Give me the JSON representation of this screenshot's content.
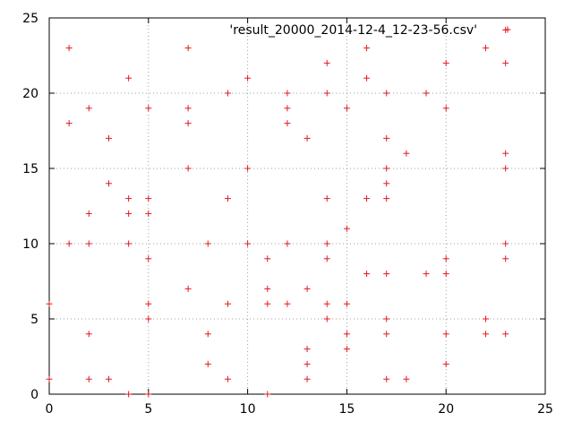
{
  "chart_data": {
    "type": "scatter",
    "title": "",
    "xlabel": "",
    "ylabel": "",
    "xlim": [
      0,
      25
    ],
    "ylim": [
      0,
      25
    ],
    "xticks": [
      "0",
      "5",
      "10",
      "15",
      "20",
      "25"
    ],
    "yticks": [
      "0",
      "5",
      "10",
      "15",
      "20",
      "25"
    ],
    "grid": true,
    "legend_position": "top-right",
    "marker": "plus",
    "series": [
      {
        "name": "'result_20000_2014-12-4_12-23-56.csv'",
        "color": "#e41a1c",
        "points": [
          [
            0,
            1
          ],
          [
            0,
            6
          ],
          [
            1,
            10
          ],
          [
            1,
            18
          ],
          [
            1,
            23
          ],
          [
            2,
            1
          ],
          [
            2,
            4
          ],
          [
            2,
            10
          ],
          [
            2,
            12
          ],
          [
            2,
            19
          ],
          [
            3,
            1
          ],
          [
            3,
            14
          ],
          [
            3,
            17
          ],
          [
            4,
            0
          ],
          [
            4,
            10
          ],
          [
            4,
            12
          ],
          [
            4,
            13
          ],
          [
            4,
            21
          ],
          [
            5,
            0
          ],
          [
            5,
            5
          ],
          [
            5,
            6
          ],
          [
            5,
            9
          ],
          [
            5,
            12
          ],
          [
            5,
            13
          ],
          [
            5,
            19
          ],
          [
            7,
            7
          ],
          [
            7,
            15
          ],
          [
            7,
            18
          ],
          [
            7,
            19
          ],
          [
            7,
            23
          ],
          [
            8,
            2
          ],
          [
            8,
            4
          ],
          [
            8,
            10
          ],
          [
            9,
            1
          ],
          [
            9,
            6
          ],
          [
            9,
            13
          ],
          [
            9,
            20
          ],
          [
            10,
            10
          ],
          [
            10,
            15
          ],
          [
            10,
            21
          ],
          [
            11,
            0
          ],
          [
            11,
            6
          ],
          [
            11,
            7
          ],
          [
            11,
            9
          ],
          [
            12,
            6
          ],
          [
            12,
            10
          ],
          [
            12,
            18
          ],
          [
            12,
            19
          ],
          [
            12,
            20
          ],
          [
            13,
            1
          ],
          [
            13,
            2
          ],
          [
            13,
            3
          ],
          [
            13,
            7
          ],
          [
            13,
            17
          ],
          [
            14,
            5
          ],
          [
            14,
            6
          ],
          [
            14,
            9
          ],
          [
            14,
            10
          ],
          [
            14,
            13
          ],
          [
            14,
            20
          ],
          [
            14,
            22
          ],
          [
            15,
            3
          ],
          [
            15,
            4
          ],
          [
            15,
            6
          ],
          [
            15,
            11
          ],
          [
            15,
            19
          ],
          [
            16,
            8
          ],
          [
            16,
            13
          ],
          [
            16,
            21
          ],
          [
            16,
            23
          ],
          [
            17,
            1
          ],
          [
            17,
            4
          ],
          [
            17,
            5
          ],
          [
            17,
            8
          ],
          [
            17,
            13
          ],
          [
            17,
            14
          ],
          [
            17,
            15
          ],
          [
            17,
            17
          ],
          [
            17,
            20
          ],
          [
            18,
            1
          ],
          [
            18,
            16
          ],
          [
            19,
            8
          ],
          [
            19,
            20
          ],
          [
            20,
            2
          ],
          [
            20,
            4
          ],
          [
            20,
            8
          ],
          [
            20,
            9
          ],
          [
            20,
            19
          ],
          [
            20,
            22
          ],
          [
            22,
            4
          ],
          [
            22,
            5
          ],
          [
            22,
            23
          ],
          [
            23,
            4
          ],
          [
            23,
            9
          ],
          [
            23,
            10
          ],
          [
            23,
            15
          ],
          [
            23,
            16
          ],
          [
            23,
            22
          ],
          [
            23,
            24.2
          ]
        ]
      }
    ]
  }
}
